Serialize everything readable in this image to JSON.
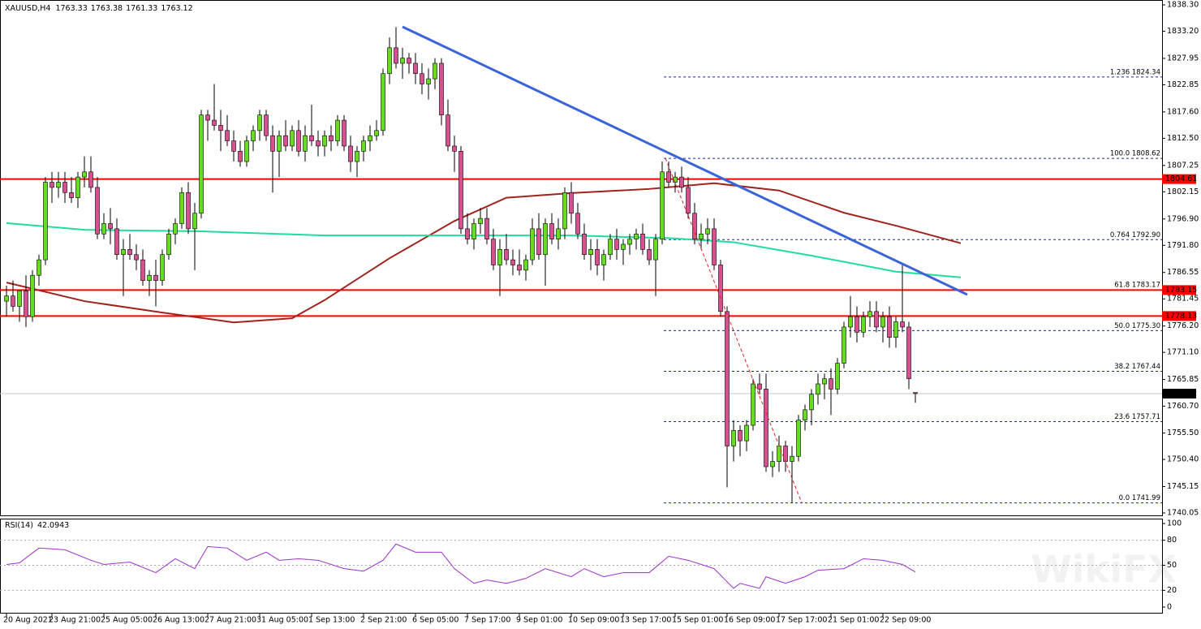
{
  "chart_data": {
    "type": "candlestick",
    "title": "XAUUSD,H4",
    "bull_color": "#66dd22",
    "bear_color": "#d8508f",
    "ylim": [
      1739.42,
      1839.24
    ],
    "yticks": [
      {
        "value": 1838.3,
        "label": "1838.30"
      },
      {
        "value": 1833.2,
        "label": "1833.20"
      },
      {
        "value": 1827.95,
        "label": "1827.95"
      },
      {
        "value": 1822.85,
        "label": "1822.85"
      },
      {
        "value": 1817.6,
        "label": "1817.60"
      },
      {
        "value": 1812.5,
        "label": "1812.50"
      },
      {
        "value": 1807.25,
        "label": "1807.25"
      },
      {
        "value": 1802.15,
        "label": "1802.15"
      },
      {
        "value": 1796.9,
        "label": "1796.90"
      },
      {
        "value": 1791.8,
        "label": "1791.80"
      },
      {
        "value": 1786.55,
        "label": "1786.55"
      },
      {
        "value": 1781.45,
        "label": "1781.45"
      },
      {
        "value": 1776.2,
        "label": "1776.20"
      },
      {
        "value": 1771.1,
        "label": "1771.10"
      },
      {
        "value": 1765.85,
        "label": "1765.85"
      },
      {
        "value": 1760.7,
        "label": "1760.70"
      },
      {
        "value": 1755.5,
        "label": "1755.50"
      },
      {
        "value": 1750.4,
        "label": "1750.40"
      },
      {
        "value": 1745.15,
        "label": "1745.15"
      },
      {
        "value": 1740.05,
        "label": "1740.05"
      }
    ],
    "xticks": [
      {
        "value": 0,
        "label": "20 Aug 2021"
      },
      {
        "value": 7,
        "label": "23 Aug 21:00"
      },
      {
        "value": 15,
        "label": "25 Aug 05:00"
      },
      {
        "value": 23,
        "label": "26 Aug 13:00"
      },
      {
        "value": 31,
        "label": "27 Aug 21:00"
      },
      {
        "value": 39,
        "label": "31 Aug 05:00"
      },
      {
        "value": 47,
        "label": "1 Sep 13:00"
      },
      {
        "value": 55,
        "label": "2 Sep 21:00"
      },
      {
        "value": 63,
        "label": "6 Sep 05:00"
      },
      {
        "value": 71,
        "label": "7 Sep 17:00"
      },
      {
        "value": 79,
        "label": "9 Sep 01:00"
      },
      {
        "value": 87,
        "label": "10 Sep 09:00"
      },
      {
        "value": 95,
        "label": "13 Sep 17:00"
      },
      {
        "value": 103,
        "label": "15 Sep 01:00"
      },
      {
        "value": 111,
        "label": "16 Sep 09:00"
      },
      {
        "value": 119,
        "label": "17 Sep 17:00"
      },
      {
        "value": 127,
        "label": "21 Sep 01:00"
      },
      {
        "value": 135,
        "label": "22 Sep 09:00"
      }
    ],
    "candles": [
      [
        1781,
        1784,
        1778,
        1782
      ],
      [
        1782,
        1785,
        1779,
        1780
      ],
      [
        1780,
        1783,
        1777,
        1783
      ],
      [
        1783,
        1786,
        1776,
        1778
      ],
      [
        1778,
        1787,
        1777,
        1786
      ],
      [
        1786,
        1790,
        1784,
        1789
      ],
      [
        1789,
        1805,
        1788,
        1804
      ],
      [
        1804,
        1806,
        1800,
        1803
      ],
      [
        1803,
        1806,
        1801,
        1804
      ],
      [
        1804,
        1806,
        1800,
        1802
      ],
      [
        1802,
        1805,
        1800,
        1801
      ],
      [
        1801,
        1806,
        1799,
        1805
      ],
      [
        1805,
        1809,
        1803,
        1806
      ],
      [
        1806,
        1809,
        1802,
        1803
      ],
      [
        1803,
        1805,
        1793,
        1794
      ],
      [
        1794,
        1798,
        1793,
        1796
      ],
      [
        1796,
        1799,
        1792,
        1795
      ],
      [
        1795,
        1797,
        1789,
        1790
      ],
      [
        1790,
        1793,
        1782,
        1791
      ],
      [
        1791,
        1794,
        1789,
        1790
      ],
      [
        1790,
        1792,
        1787,
        1789
      ],
      [
        1789,
        1791,
        1784,
        1785
      ],
      [
        1785,
        1787,
        1782,
        1786
      ],
      [
        1786,
        1789,
        1780,
        1785
      ],
      [
        1785,
        1791,
        1784,
        1790
      ],
      [
        1790,
        1795,
        1789,
        1794
      ],
      [
        1794,
        1797,
        1792,
        1796
      ],
      [
        1796,
        1803,
        1795,
        1802
      ],
      [
        1802,
        1804,
        1794,
        1795
      ],
      [
        1795,
        1800,
        1787,
        1798
      ],
      [
        1798,
        1818,
        1797,
        1817
      ],
      [
        1817,
        1818,
        1812,
        1816
      ],
      [
        1816,
        1823,
        1814,
        1815
      ],
      [
        1815,
        1818,
        1810,
        1814
      ],
      [
        1814,
        1817,
        1811,
        1812
      ],
      [
        1812,
        1814,
        1808,
        1810
      ],
      [
        1810,
        1812,
        1807,
        1808
      ],
      [
        1808,
        1813,
        1807,
        1812
      ],
      [
        1812,
        1815,
        1810,
        1814
      ],
      [
        1814,
        1818,
        1812,
        1817
      ],
      [
        1817,
        1818,
        1812,
        1813
      ],
      [
        1813,
        1815,
        1802,
        1810
      ],
      [
        1810,
        1814,
        1805,
        1813
      ],
      [
        1813,
        1816,
        1810,
        1811
      ],
      [
        1811,
        1815,
        1810,
        1814
      ],
      [
        1814,
        1816,
        1809,
        1810
      ],
      [
        1810,
        1815,
        1808,
        1813
      ],
      [
        1813,
        1819,
        1811,
        1812
      ],
      [
        1812,
        1814,
        1809,
        1811
      ],
      [
        1811,
        1814,
        1809,
        1813
      ],
      [
        1813,
        1815,
        1810,
        1812
      ],
      [
        1812,
        1817,
        1811,
        1816
      ],
      [
        1816,
        1817,
        1810,
        1811
      ],
      [
        1811,
        1813,
        1806,
        1808
      ],
      [
        1808,
        1811,
        1805,
        1810
      ],
      [
        1810,
        1813,
        1808,
        1812
      ],
      [
        1812,
        1815,
        1810,
        1813
      ],
      [
        1813,
        1816,
        1812,
        1814
      ],
      [
        1814,
        1826,
        1813,
        1825
      ],
      [
        1825,
        1832,
        1823,
        1830
      ],
      [
        1830,
        1834,
        1826,
        1827
      ],
      [
        1827,
        1830,
        1824,
        1828
      ],
      [
        1828,
        1829,
        1825,
        1827
      ],
      [
        1827,
        1829,
        1823,
        1825
      ],
      [
        1825,
        1827,
        1821,
        1823
      ],
      [
        1823,
        1826,
        1820,
        1824
      ],
      [
        1824,
        1828,
        1822,
        1827
      ],
      [
        1827,
        1828,
        1815,
        1817
      ],
      [
        1817,
        1820,
        1810,
        1811
      ],
      [
        1811,
        1813,
        1806,
        1810
      ],
      [
        1810,
        1811,
        1794,
        1795
      ],
      [
        1795,
        1798,
        1792,
        1793
      ],
      [
        1793,
        1797,
        1791,
        1796
      ],
      [
        1796,
        1799,
        1794,
        1797
      ],
      [
        1797,
        1799,
        1792,
        1793
      ],
      [
        1793,
        1795,
        1787,
        1788
      ],
      [
        1788,
        1793,
        1782,
        1791
      ],
      [
        1791,
        1794,
        1788,
        1789
      ],
      [
        1789,
        1791,
        1786,
        1788
      ],
      [
        1788,
        1791,
        1786,
        1787
      ],
      [
        1787,
        1790,
        1785,
        1789
      ],
      [
        1789,
        1797,
        1788,
        1795
      ],
      [
        1795,
        1798,
        1789,
        1790
      ],
      [
        1790,
        1797,
        1784,
        1796
      ],
      [
        1796,
        1798,
        1792,
        1793
      ],
      [
        1793,
        1797,
        1791,
        1795
      ],
      [
        1795,
        1803,
        1793,
        1802
      ],
      [
        1802,
        1804,
        1796,
        1798
      ],
      [
        1798,
        1800,
        1793,
        1794
      ],
      [
        1794,
        1796,
        1789,
        1790
      ],
      [
        1790,
        1793,
        1787,
        1791
      ],
      [
        1791,
        1793,
        1786,
        1788
      ],
      [
        1788,
        1791,
        1785,
        1790
      ],
      [
        1790,
        1794,
        1789,
        1793
      ],
      [
        1793,
        1795,
        1789,
        1791
      ],
      [
        1791,
        1793,
        1788,
        1792
      ],
      [
        1792,
        1794,
        1790,
        1793
      ],
      [
        1793,
        1795,
        1791,
        1794
      ],
      [
        1794,
        1796,
        1790,
        1791
      ],
      [
        1791,
        1793,
        1788,
        1789
      ],
      [
        1789,
        1794,
        1782,
        1793
      ],
      [
        1793,
        1808,
        1792,
        1806
      ],
      [
        1806,
        1808,
        1803,
        1804
      ],
      [
        1804,
        1806,
        1802,
        1805
      ],
      [
        1805,
        1807,
        1802,
        1803
      ],
      [
        1803,
        1805,
        1797,
        1798
      ],
      [
        1798,
        1800,
        1792,
        1793
      ],
      [
        1793,
        1796,
        1791,
        1794
      ],
      [
        1794,
        1797,
        1792,
        1795
      ],
      [
        1795,
        1797,
        1787,
        1788
      ],
      [
        1788,
        1789,
        1778,
        1779
      ],
      [
        1779,
        1780,
        1745,
        1753
      ],
      [
        1753,
        1758,
        1750,
        1756
      ],
      [
        1756,
        1757,
        1751,
        1754
      ],
      [
        1754,
        1758,
        1752,
        1757
      ],
      [
        1757,
        1766,
        1756,
        1765
      ],
      [
        1765,
        1767,
        1763,
        1764
      ],
      [
        1764,
        1767,
        1748,
        1749
      ],
      [
        1749,
        1752,
        1747,
        1750
      ],
      [
        1750,
        1755,
        1748,
        1753
      ],
      [
        1753,
        1754,
        1748,
        1750
      ],
      [
        1750,
        1753,
        1742,
        1751
      ],
      [
        1751,
        1759,
        1750,
        1758
      ],
      [
        1758,
        1761,
        1756,
        1760
      ],
      [
        1760,
        1764,
        1757,
        1763
      ],
      [
        1763,
        1767,
        1761,
        1765
      ],
      [
        1765,
        1767,
        1762,
        1766
      ],
      [
        1766,
        1768,
        1759,
        1764
      ],
      [
        1764,
        1770,
        1763,
        1769
      ],
      [
        1769,
        1777,
        1768,
        1776
      ],
      [
        1776,
        1782,
        1774,
        1778
      ],
      [
        1778,
        1780,
        1773,
        1775
      ],
      [
        1775,
        1779,
        1774,
        1778
      ],
      [
        1778,
        1781,
        1776,
        1779
      ],
      [
        1779,
        1781,
        1775,
        1776
      ],
      [
        1776,
        1779,
        1773,
        1778
      ],
      [
        1778,
        1780,
        1772,
        1774
      ],
      [
        1774,
        1778,
        1772,
        1777
      ],
      [
        1777,
        1788,
        1775,
        1776
      ],
      [
        1776,
        1777,
        1764,
        1766
      ],
      [
        1763.33,
        1763.38,
        1761.33,
        1763.12
      ]
    ],
    "series": [
      {
        "color": "#a0231e",
        "x": [
          0,
          12,
          24,
          35,
          44,
          49,
          59,
          69,
          77,
          87,
          99,
          109,
          119,
          129,
          137,
          147
        ],
        "values": [
          1784.6,
          1781,
          1778.8,
          1776.9,
          1777.7,
          1781.2,
          1789.3,
          1796.5,
          1801,
          1801.9,
          1802.7,
          1803.8,
          1802.4,
          1798.1,
          1795.6,
          1792.2
        ]
      },
      {
        "color": "#22dd99",
        "x": [
          0,
          12,
          30,
          49,
          68,
          87,
          102,
          112,
          124,
          137,
          147
        ],
        "values": [
          1796.1,
          1794.8,
          1794.5,
          1793.7,
          1793.7,
          1793.7,
          1793.2,
          1792.4,
          1789.8,
          1786.7,
          1785.6
        ]
      }
    ],
    "hlines": {
      "color": "#ff0000",
      "values": [
        1804.61,
        1783.15,
        1778.13
      ]
    },
    "fib": {
      "color": "#1a2a9a",
      "levels": [
        {
          "value": 1824.34,
          "label": "1.236 1824.34"
        },
        {
          "value": 1808.62,
          "label": "100.0 1808.62"
        },
        {
          "value": 1792.9,
          "label": "0.764 1792.90"
        },
        {
          "value": 1783.17,
          "label": "61.8 1783.17"
        },
        {
          "value": 1775.3,
          "label": "50.0 1775.30"
        },
        {
          "value": 1767.44,
          "label": "38.2 1767.44"
        },
        {
          "value": 1757.71,
          "label": "23.6 1757.71"
        },
        {
          "value": 1741.99,
          "label": "0.0 1741.99"
        }
      ]
    },
    "trendlines": [
      {
        "color": "#3a64d8",
        "width": 3,
        "dashed": false,
        "x": [
          61,
          148
        ],
        "values": [
          1834.06,
          1782.27
        ]
      },
      {
        "color": "#e02020",
        "width": 1,
        "dashed": true,
        "x": [
          101.5,
          122.5
        ],
        "values": [
          1808.62,
          1741.99
        ]
      }
    ],
    "rsi": {
      "label": "RSI(14)",
      "current": 42.0943,
      "color": "#9b30c8",
      "ylim": [
        -7.8,
        104.9
      ],
      "yticks": [
        100,
        80,
        50,
        20,
        0
      ],
      "levels": [
        80,
        50,
        20
      ],
      "x": [
        0,
        2,
        5,
        9,
        13,
        15,
        19,
        23,
        26,
        29,
        31,
        34,
        37,
        40,
        42,
        45,
        48,
        52,
        55,
        58,
        60,
        63,
        67,
        69,
        72,
        74,
        77,
        80,
        83,
        87,
        89,
        92,
        95,
        99,
        102,
        105,
        109,
        112,
        113,
        116,
        117,
        120,
        123,
        125,
        129,
        132,
        135,
        138,
        140
      ],
      "values": [
        51,
        52.9,
        70.6,
        68.6,
        56,
        51,
        53.9,
        41.2,
        57.8,
        46,
        72.5,
        70.6,
        56,
        65.7,
        56,
        57.8,
        56,
        46,
        43,
        56,
        75.5,
        65.7,
        65.7,
        46,
        28.4,
        32.4,
        28.4,
        34.3,
        46,
        36.3,
        46,
        36.3,
        41.2,
        41.2,
        60.8,
        56,
        46,
        22.5,
        28.4,
        22.5,
        36.3,
        28.4,
        36.3,
        44.1,
        46,
        57.8,
        56,
        51,
        42.0943
      ]
    },
    "watermark": "WikiFX"
  }
}
